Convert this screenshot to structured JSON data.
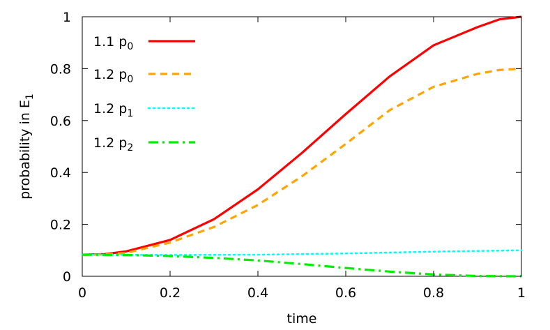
{
  "chart_data": {
    "type": "line",
    "title": "",
    "xlabel": "time",
    "ylabel": {
      "main": "probability in E",
      "sub": "1"
    },
    "xlim": [
      0,
      1
    ],
    "ylim": [
      0,
      1
    ],
    "xticks": [
      "0",
      "0.2",
      "0.4",
      "0.6",
      "0.8",
      "1"
    ],
    "yticks": [
      "0",
      "0.2",
      "0.4",
      "0.6",
      "0.8",
      "1"
    ],
    "grid": false,
    "legend_position": "top-left",
    "series": [
      {
        "name": {
          "main": "1.1 p",
          "sub": "0"
        },
        "color": "#ff0000",
        "dash": "solid",
        "x": [
          0,
          0.05,
          0.1,
          0.2,
          0.3,
          0.4,
          0.5,
          0.6,
          0.7,
          0.8,
          0.9,
          0.95,
          1.0
        ],
        "y": [
          0.083,
          0.085,
          0.096,
          0.14,
          0.22,
          0.335,
          0.475,
          0.625,
          0.77,
          0.89,
          0.96,
          0.99,
          1.0
        ]
      },
      {
        "name": {
          "main": "1.2 p",
          "sub": "0"
        },
        "color": "#ffa500",
        "dash": "dashed",
        "x": [
          0,
          0.05,
          0.1,
          0.2,
          0.3,
          0.4,
          0.5,
          0.6,
          0.7,
          0.8,
          0.9,
          0.95,
          1.0
        ],
        "y": [
          0.083,
          0.084,
          0.09,
          0.13,
          0.19,
          0.275,
          0.385,
          0.51,
          0.64,
          0.73,
          0.78,
          0.795,
          0.8
        ]
      },
      {
        "name": {
          "main": "1.2 p",
          "sub": "1"
        },
        "color": "#00ffff",
        "dash": "dotted",
        "x": [
          0,
          0.2,
          0.4,
          0.6,
          0.8,
          1.0
        ],
        "y": [
          0.083,
          0.082,
          0.083,
          0.088,
          0.095,
          0.1
        ]
      },
      {
        "name": {
          "main": "1.2 p",
          "sub": "2"
        },
        "color": "#00ee00",
        "dash": "dashdot",
        "x": [
          0,
          0.1,
          0.2,
          0.3,
          0.4,
          0.5,
          0.6,
          0.7,
          0.8,
          0.9,
          1.0
        ],
        "y": [
          0.083,
          0.082,
          0.078,
          0.071,
          0.061,
          0.047,
          0.032,
          0.018,
          0.007,
          0.001,
          0.0
        ]
      }
    ]
  }
}
